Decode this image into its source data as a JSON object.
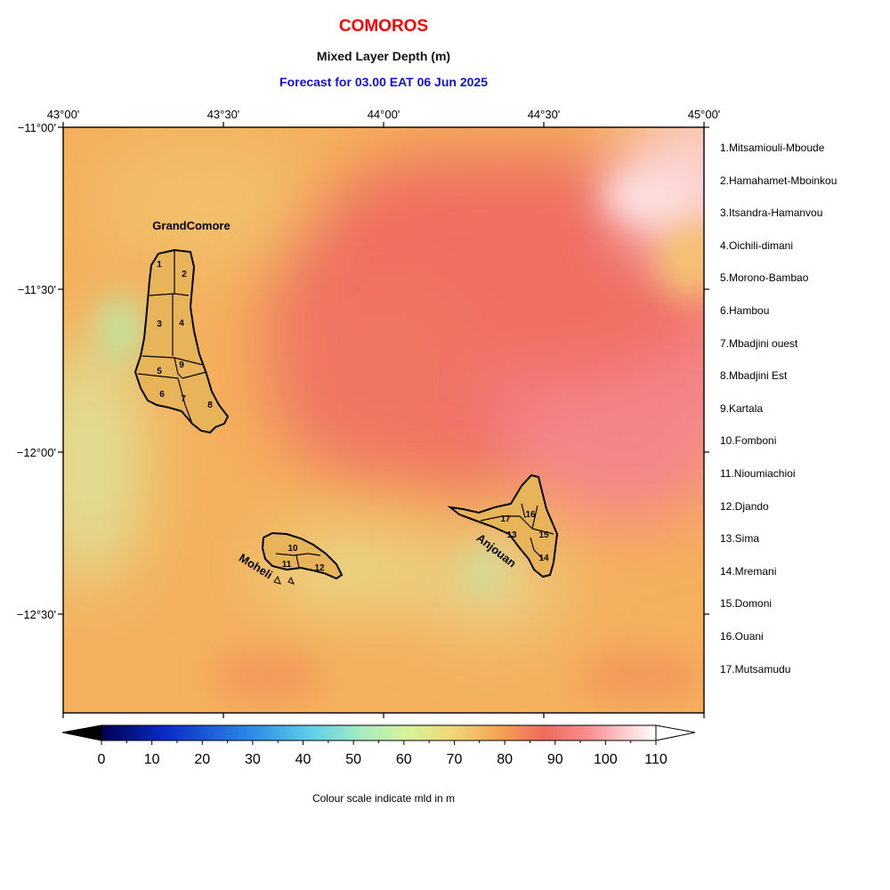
{
  "header": {
    "title": "COMOROS",
    "subtitle": "Mixed Layer Depth (m)",
    "forecast": "Forecast for  03.00 EAT 06 Jun 2025"
  },
  "axes": {
    "top_ticks": [
      "43°00'",
      "43°30'",
      "44°00'",
      "44°30'",
      "45°00'"
    ],
    "left_ticks": [
      "−11°00'",
      "−11°30'",
      "−12°00'",
      "−12°30'"
    ]
  },
  "islands": {
    "grand_comore": "GrandComore",
    "moheli": "Moheli",
    "anjouan": "Anjouan"
  },
  "district_numbers": [
    "1",
    "2",
    "3",
    "4",
    "5",
    "6",
    "7",
    "8",
    "9",
    "10",
    "11",
    "12",
    "13",
    "14",
    "15",
    "16",
    "17"
  ],
  "legend": [
    "1.Mitsamiouli-Mboude",
    "2.Hamahamet-Mboinkou",
    "3.Itsandra-Hamanvou",
    "4.Oichili-dimani",
    "5.Morono-Bambao",
    "6.Hambou",
    "7.Mbadjini ouest",
    "8.Mbadjini Est",
    "9.Kartala",
    "10.Fomboni",
    "11.Nioumiachioi",
    "12.Djando",
    "13.Sima",
    "14.Mremani",
    "15.Domoni",
    "16.Ouani",
    "17.Mutsamudu"
  ],
  "colorbar": {
    "ticks": [
      "0",
      "10",
      "20",
      "30",
      "40",
      "50",
      "60",
      "70",
      "80",
      "90",
      "100",
      "110"
    ],
    "caption": "Colour scale indicate mld in m"
  },
  "colors": {
    "title": "#ff0000",
    "forecast": "#1010e0",
    "land": "#e8b45a",
    "sea_base": "#f5b45c",
    "high_mld": "#f07068"
  }
}
